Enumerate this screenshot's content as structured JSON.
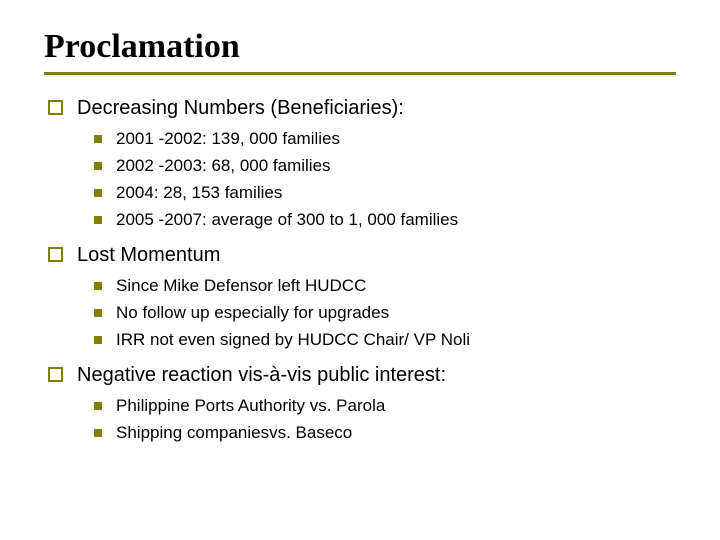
{
  "title": "Proclamation",
  "colors": {
    "accent": "#808000",
    "text": "#000000",
    "background": "#ffffff"
  },
  "typography": {
    "title_font": "Georgia",
    "title_size_pt": 26,
    "body_font": "Verdana",
    "l1_size_pt": 15,
    "l2_size_pt": 13
  },
  "sections": [
    {
      "heading": "Decreasing Numbers (Beneficiaries):",
      "items": [
        "2001 -2002: 139, 000 families",
        "2002 -2003: 68, 000 families",
        "2004: 28, 153 families",
        "2005 -2007: average of 300 to 1, 000 families"
      ]
    },
    {
      "heading": "Lost Momentum",
      "items": [
        "Since Mike Defensor left HUDCC",
        "No follow up especially for upgrades",
        "IRR not even signed by HUDCC Chair/ VP Noli"
      ]
    },
    {
      "heading": "Negative reaction vis-à-vis public interest:",
      "items": [
        "Philippine Ports Authority vs. Parola",
        "Shipping companiesvs. Baseco"
      ]
    }
  ]
}
